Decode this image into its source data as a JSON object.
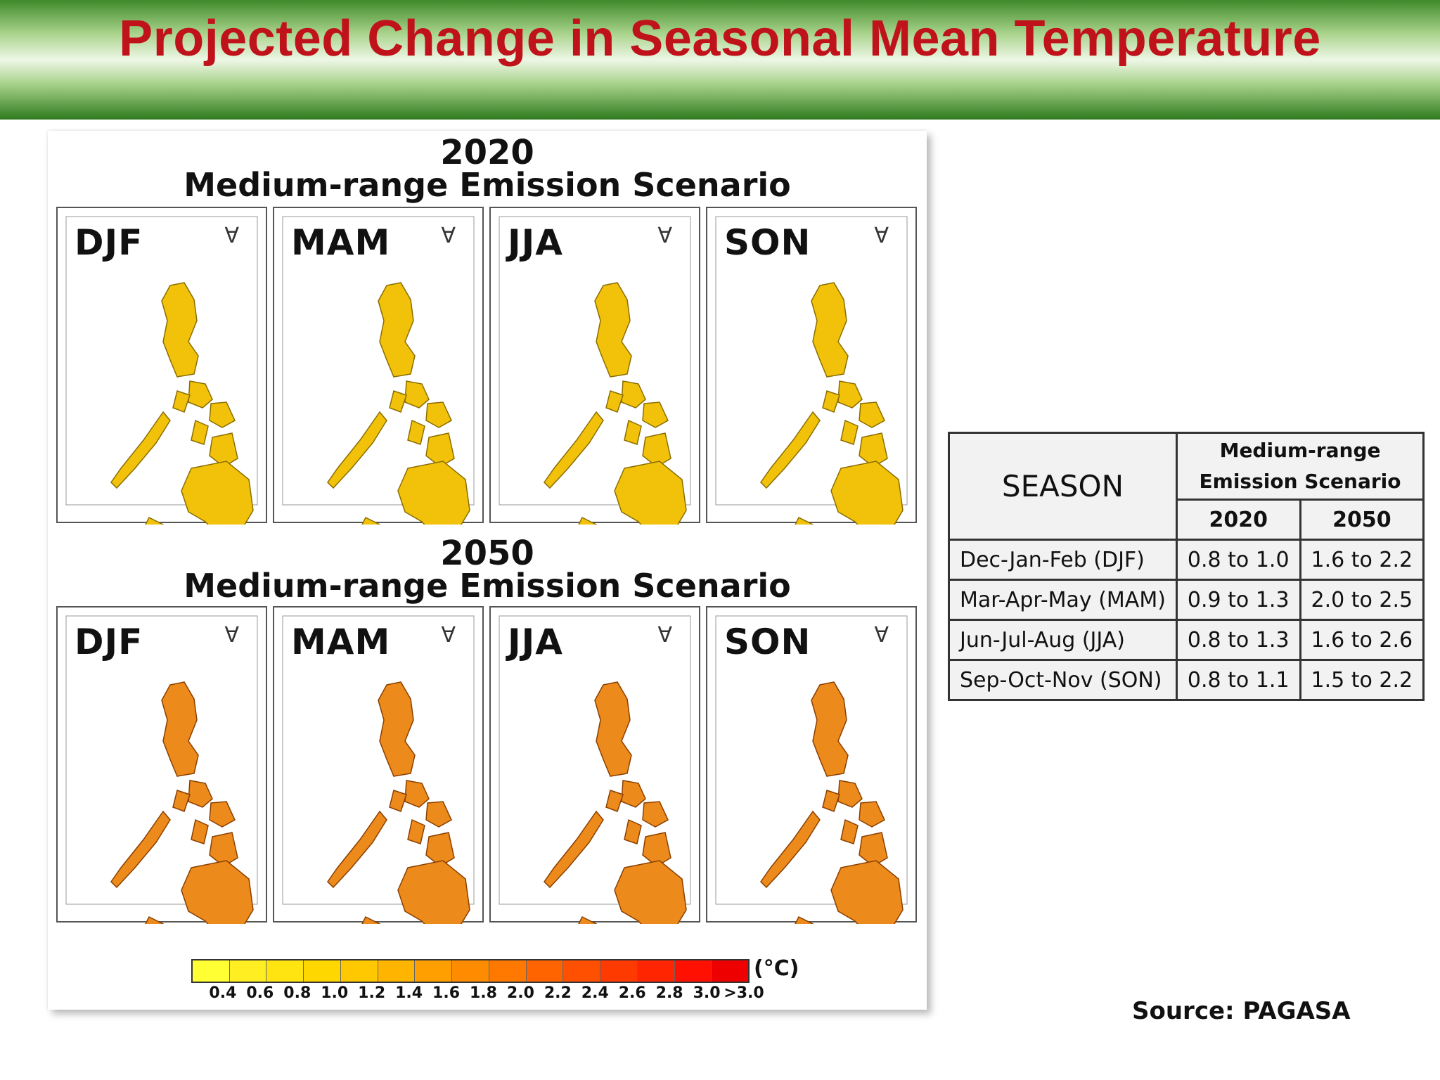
{
  "header": {
    "title": "Projected Change in Seasonal Mean Temperature"
  },
  "figure": {
    "blocks": [
      {
        "year": "2020",
        "scenario": "Medium-range Emission Scenario",
        "fill": "#f2c20a",
        "edge": "#8a6d00"
      },
      {
        "year": "2050",
        "scenario": "Medium-range Emission Scenario",
        "fill": "#ec8a1c",
        "edge": "#8a3f00"
      }
    ],
    "seasons": [
      "DJF",
      "MAM",
      "JJA",
      "SON"
    ],
    "legend": {
      "unit": "(°C)",
      "ticks": [
        "0.4",
        "0.6",
        "0.8",
        "1.0",
        "1.2",
        "1.4",
        "1.6",
        "1.8",
        "2.0",
        "2.2",
        "2.4",
        "2.6",
        "2.8",
        "3.0",
        ">3.0"
      ],
      "colors": [
        "#ffff33",
        "#ffee22",
        "#ffe411",
        "#ffd700",
        "#ffc800",
        "#ffb400",
        "#ffa000",
        "#ff8c00",
        "#ff7800",
        "#ff6400",
        "#ff4f00",
        "#ff3a00",
        "#ff2500",
        "#ff1000",
        "#ee0000"
      ]
    }
  },
  "table": {
    "season_header": "SEASON",
    "scenario_header_line1": "Medium-range",
    "scenario_header_line2": "Emission Scenario",
    "year_headers": [
      "2020",
      "2050"
    ],
    "rows": [
      {
        "season": "Dec-Jan-Feb (DJF)",
        "v2020": "0.8 to 1.0",
        "v2050": "1.6 to 2.2"
      },
      {
        "season": "Mar-Apr-May (MAM)",
        "v2020": "0.9 to 1.3",
        "v2050": "2.0 to 2.5"
      },
      {
        "season": "Jun-Jul-Aug (JJA)",
        "v2020": "0.8 to 1.3",
        "v2050": "1.6 to 2.6"
      },
      {
        "season": "Sep-Oct-Nov (SON)",
        "v2020": "0.8 to 1.1",
        "v2050": "1.5 to 2.2"
      }
    ]
  },
  "source": "Source: PAGASA"
}
